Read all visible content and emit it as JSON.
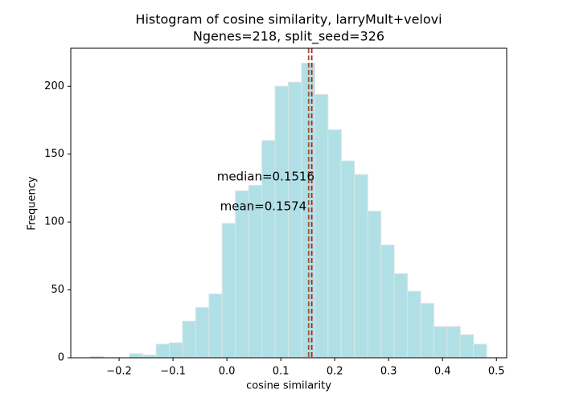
{
  "chart_data": {
    "type": "histogram",
    "title": "Histogram of cosine similarity, larryMult+velovi",
    "subtitle": "Ngenes=218, split_seed=326",
    "x_label": "cosine similarity",
    "y_label": "Frequency",
    "bins": [
      -0.254,
      -0.2295,
      -0.205,
      -0.1804,
      -0.1559,
      -0.1313,
      -0.1068,
      -0.0823,
      -0.0578,
      -0.0332,
      -0.0087,
      0.0158,
      0.0404,
      0.0649,
      0.0894,
      0.114,
      0.1385,
      0.163,
      0.1875,
      0.2121,
      0.2366,
      0.2611,
      0.2857,
      0.3102,
      0.3347,
      0.3593,
      0.3838,
      0.4083,
      0.4328,
      0.4574,
      0.4819
    ],
    "values": [
      1,
      0,
      0,
      3,
      2,
      10,
      11,
      27,
      37,
      47,
      99,
      123,
      127,
      160,
      200,
      203,
      217,
      194,
      168,
      145,
      135,
      108,
      83,
      62,
      49,
      40,
      23,
      23,
      17,
      10
    ],
    "color": "#b0e0e6",
    "edgecolor": "#d8e4e6",
    "xlim": [
      -0.2896,
      0.519
    ],
    "ylim": [
      0,
      228
    ],
    "xticks": [
      {
        "value": -0.2,
        "label": "−0.2"
      },
      {
        "value": -0.1,
        "label": "−0.1"
      },
      {
        "value": 0,
        "label": "0.0"
      },
      0.1,
      0.2,
      0.3,
      0.4,
      0.5
    ],
    "yticks": [
      0,
      50,
      100,
      150,
      200
    ],
    "vlines": [
      {
        "value": 0.1516,
        "label": "median=0.1516",
        "color": "#a0522d"
      },
      {
        "value": 0.1574,
        "label": "mean=0.1574",
        "color": "#b22222"
      }
    ]
  }
}
